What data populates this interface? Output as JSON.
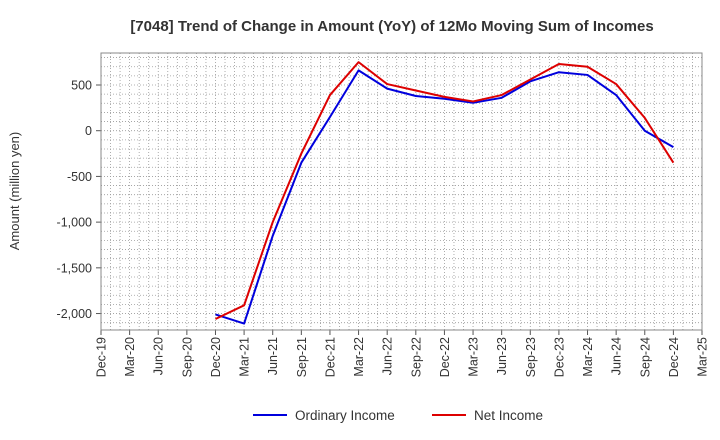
{
  "chart_data": {
    "type": "line",
    "title": "[7048]  Trend of Change in Amount (YoY) of 12Mo Moving Sum of Incomes",
    "xlabel": "",
    "ylabel": "Amount (million yen)",
    "categories": [
      "Dec-19",
      "Mar-20",
      "Jun-20",
      "Sep-20",
      "Dec-20",
      "Mar-21",
      "Jun-21",
      "Sep-21",
      "Dec-21",
      "Mar-22",
      "Jun-22",
      "Sep-22",
      "Dec-22",
      "Mar-23",
      "Jun-23",
      "Sep-23",
      "Dec-23",
      "Mar-24",
      "Jun-24",
      "Sep-24",
      "Dec-24",
      "Mar-25"
    ],
    "ylim": [
      -2180,
      850
    ],
    "yticks": [
      500,
      0,
      -500,
      -1000,
      -1500,
      -2000
    ],
    "ytick_labels": [
      "500",
      "0",
      "-500",
      "-1,000",
      "-1,500",
      "-2,000"
    ],
    "grid": true,
    "legend_position": "bottom",
    "series": [
      {
        "name": "Ordinary Income",
        "color": "#0000dd",
        "values": [
          null,
          null,
          null,
          null,
          -2010,
          -2110,
          -1150,
          -350,
          150,
          660,
          460,
          380,
          350,
          305,
          360,
          540,
          640,
          610,
          390,
          0,
          -180,
          null
        ]
      },
      {
        "name": "Net Income",
        "color": "#dd0000",
        "values": [
          null,
          null,
          null,
          null,
          -2060,
          -1910,
          -1000,
          -250,
          390,
          750,
          510,
          440,
          370,
          320,
          390,
          560,
          730,
          700,
          510,
          140,
          -350,
          null
        ]
      }
    ]
  }
}
